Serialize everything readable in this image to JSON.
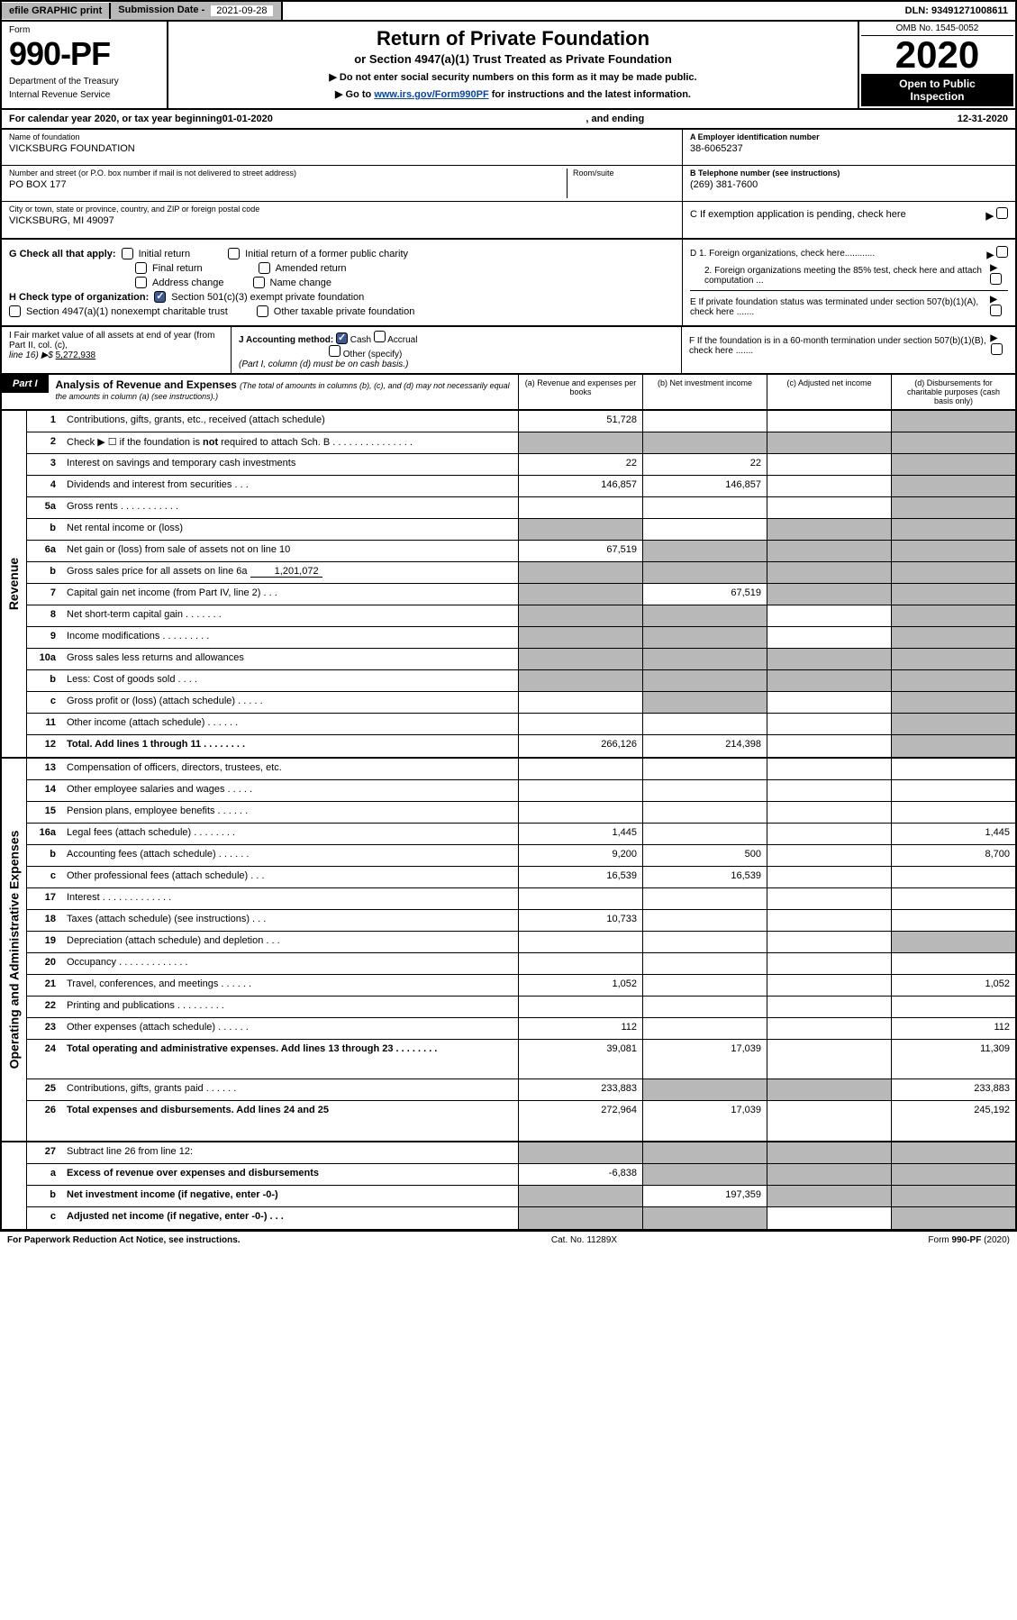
{
  "topbar": {
    "efile": "efile GRAPHIC print",
    "sub_date_label": "Submission Date - ",
    "sub_date": "2021-09-28",
    "dln_label": "DLN: ",
    "dln": "93491271008611"
  },
  "header": {
    "form_label": "Form",
    "form_num": "990-PF",
    "dept1": "Department of the Treasury",
    "dept2": "Internal Revenue Service",
    "title": "Return of Private Foundation",
    "subtitle": "or Section 4947(a)(1) Trust Treated as Private Foundation",
    "inst1": "▶ Do not enter social security numbers on this form as it may be made public.",
    "inst2_pre": "▶ Go to ",
    "inst2_link": "www.irs.gov/Form990PF",
    "inst2_post": " for instructions and the latest information.",
    "omb": "OMB No. 1545-0052",
    "year": "2020",
    "open_pub1": "Open to Public",
    "open_pub2": "Inspection"
  },
  "cal_year": {
    "pre": "For calendar year 2020, or tax year beginning ",
    "begin": "01-01-2020",
    "mid": " , and ending ",
    "end": "12-31-2020"
  },
  "ident": {
    "name_label": "Name of foundation",
    "name": "VICKSBURG FOUNDATION",
    "addr_label": "Number and street (or P.O. box number if mail is not delivered to street address)",
    "addr": "PO BOX 177",
    "room_label": "Room/suite",
    "city_label": "City or town, state or province, country, and ZIP or foreign postal code",
    "city": "VICKSBURG, MI  49097",
    "ein_label": "A Employer identification number",
    "ein": "38-6065237",
    "phone_label": "B Telephone number (see instructions)",
    "phone": "(269) 381-7600",
    "c_label": "C If exemption application is pending, check here"
  },
  "checks": {
    "g_label": "G Check all that apply:",
    "g_opts": [
      "Initial return",
      "Initial return of a former public charity",
      "Final return",
      "Amended return",
      "Address change",
      "Name change"
    ],
    "h_label": "H Check type of organization:",
    "h_501c3": "Section 501(c)(3) exempt private foundation",
    "h_4947": "Section 4947(a)(1) nonexempt charitable trust",
    "h_other": "Other taxable private foundation",
    "d1": "D 1. Foreign organizations, check here............",
    "d2": "2. Foreign organizations meeting the 85% test, check here and attach computation ...",
    "e": "E  If private foundation status was terminated under section 507(b)(1)(A), check here .......",
    "f": "F  If the foundation is in a 60-month termination under section 507(b)(1)(B), check here ......."
  },
  "fmv": {
    "i_label": "I Fair market value of all assets at end of year (from Part II, col. (c),",
    "i_line": "line 16) ▶$ ",
    "i_val": "5,272,938",
    "j_label": "J Accounting method:",
    "j_cash": "Cash",
    "j_accrual": "Accrual",
    "j_other": "Other (specify)",
    "j_note": "(Part I, column (d) must be on cash basis.)"
  },
  "part1": {
    "label": "Part I",
    "title": "Analysis of Revenue and Expenses",
    "desc": "(The total of amounts in columns (b), (c), and (d) may not necessarily equal the amounts in column (a) (see instructions).)",
    "cols": {
      "a": "(a)   Revenue and expenses per books",
      "b": "(b)   Net investment income",
      "c": "(c)   Adjusted net income",
      "d": "(d)   Disbursements for charitable purposes (cash basis only)"
    }
  },
  "revenue_rows": [
    {
      "n": "1",
      "d": "Contributions, gifts, grants, etc., received (attach schedule)",
      "a": "51,728",
      "shade": [
        "d"
      ]
    },
    {
      "n": "2",
      "d": "Check ▶ ☐ if the foundation is not required to attach Sch. B    .   .   .   .   .   .   .   .   .   .   .   .   .   .   .",
      "shade": [
        "a",
        "b",
        "c",
        "d"
      ],
      "bold_not": true
    },
    {
      "n": "3",
      "d": "Interest on savings and temporary cash investments",
      "a": "22",
      "b": "22",
      "shade": [
        "d"
      ]
    },
    {
      "n": "4",
      "d": "Dividends and interest from securities    .   .   .",
      "a": "146,857",
      "b": "146,857",
      "shade": [
        "d"
      ]
    },
    {
      "n": "5a",
      "d": "Gross rents    .   .   .   .   .   .   .   .   .   .   .",
      "shade": [
        "d"
      ]
    },
    {
      "n": "b",
      "d": "Net rental income or (loss)",
      "shade": [
        "a",
        "c",
        "d"
      ],
      "inline": true
    },
    {
      "n": "6a",
      "d": "Net gain or (loss) from sale of assets not on line 10",
      "a": "67,519",
      "shade": [
        "b",
        "c",
        "d"
      ]
    },
    {
      "n": "b",
      "d": "Gross sales price for all assets on line 6a",
      "inline_val": "1,201,072",
      "shade": [
        "a",
        "b",
        "c",
        "d"
      ]
    },
    {
      "n": "7",
      "d": "Capital gain net income (from Part IV, line 2)    .   .   .",
      "b": "67,519",
      "shade": [
        "a",
        "c",
        "d"
      ]
    },
    {
      "n": "8",
      "d": "Net short-term capital gain    .   .   .   .   .   .   .",
      "shade": [
        "a",
        "b",
        "d"
      ]
    },
    {
      "n": "9",
      "d": "Income modifications  .   .   .   .   .   .   .   .   .",
      "shade": [
        "a",
        "b",
        "d"
      ]
    },
    {
      "n": "10a",
      "d": "Gross sales less returns and allowances",
      "shade": [
        "a",
        "b",
        "c",
        "d"
      ],
      "inline": true
    },
    {
      "n": "b",
      "d": "Less: Cost of goods sold      .    .    .    .",
      "shade": [
        "a",
        "b",
        "c",
        "d"
      ],
      "inline": true
    },
    {
      "n": "c",
      "d": "Gross profit or (loss) (attach schedule)     .   .   .   .   .",
      "shade": [
        "b",
        "d"
      ]
    },
    {
      "n": "11",
      "d": "Other income (attach schedule)     .   .   .   .   .   .",
      "shade": [
        "d"
      ]
    },
    {
      "n": "12",
      "d": "Total. Add lines 1 through 11   .   .   .   .   .   .   .   .",
      "a": "266,126",
      "b": "214,398",
      "shade": [
        "d"
      ],
      "bold": true
    }
  ],
  "expense_rows": [
    {
      "n": "13",
      "d": "Compensation of officers, directors, trustees, etc."
    },
    {
      "n": "14",
      "d": "Other employee salaries and wages    .   .   .   .   ."
    },
    {
      "n": "15",
      "d": "Pension plans, employee benefits   .   .   .   .   .   ."
    },
    {
      "n": "16a",
      "d": "Legal fees (attach schedule)  .   .   .   .   .   .   .   .",
      "a": "1,445",
      "dd": "1,445"
    },
    {
      "n": "b",
      "d": "Accounting fees (attach schedule)  .   .   .   .   .   .",
      "a": "9,200",
      "b": "500",
      "dd": "8,700"
    },
    {
      "n": "c",
      "d": "Other professional fees (attach schedule)     .   .   .",
      "a": "16,539",
      "b": "16,539"
    },
    {
      "n": "17",
      "d": "Interest  .   .   .   .   .   .   .   .   .   .   .   .   ."
    },
    {
      "n": "18",
      "d": "Taxes (attach schedule) (see instructions)     .   .   .",
      "a": "10,733"
    },
    {
      "n": "19",
      "d": "Depreciation (attach schedule) and depletion     .   .   .",
      "shade": [
        "d"
      ]
    },
    {
      "n": "20",
      "d": "Occupancy  .   .   .   .   .   .   .   .   .   .   .   .   ."
    },
    {
      "n": "21",
      "d": "Travel, conferences, and meetings  .   .   .   .   .   .",
      "a": "1,052",
      "dd": "1,052"
    },
    {
      "n": "22",
      "d": "Printing and publications  .   .   .   .   .   .   .   .   ."
    },
    {
      "n": "23",
      "d": "Other expenses (attach schedule)  .   .   .   .   .   .",
      "a": "112",
      "dd": "112"
    },
    {
      "n": "24",
      "d": "Total operating and administrative expenses. Add lines 13 through 23   .   .   .   .   .   .   .   .",
      "a": "39,081",
      "b": "17,039",
      "dd": "11,309",
      "bold": true,
      "tall": true
    },
    {
      "n": "25",
      "d": "Contributions, gifts, grants paid     .   .   .   .   .   .",
      "a": "233,883",
      "dd": "233,883",
      "shade": [
        "b",
        "c"
      ]
    },
    {
      "n": "26",
      "d": "Total expenses and disbursements. Add lines 24 and 25",
      "a": "272,964",
      "b": "17,039",
      "dd": "245,192",
      "bold": true,
      "tall": true
    }
  ],
  "bottom_rows": [
    {
      "n": "27",
      "d": "Subtract line 26 from line 12:",
      "shade": [
        "a",
        "b",
        "c",
        "d"
      ]
    },
    {
      "n": "a",
      "d": "Excess of revenue over expenses and disbursements",
      "a": "-6,838",
      "shade": [
        "b",
        "c",
        "d"
      ],
      "bold": true
    },
    {
      "n": "b",
      "d": "Net investment income (if negative, enter -0-)",
      "b": "197,359",
      "shade": [
        "a",
        "c",
        "d"
      ],
      "bold": true
    },
    {
      "n": "c",
      "d": "Adjusted net income (if negative, enter -0-)    .   .   .",
      "shade": [
        "a",
        "b",
        "d"
      ],
      "bold": true
    }
  ],
  "side_labels": {
    "rev": "Revenue",
    "exp": "Operating and Administrative Expenses"
  },
  "footer": {
    "left": "For Paperwork Reduction Act Notice, see instructions.",
    "mid": "Cat. No. 11289X",
    "right": "Form 990-PF (2020)"
  }
}
